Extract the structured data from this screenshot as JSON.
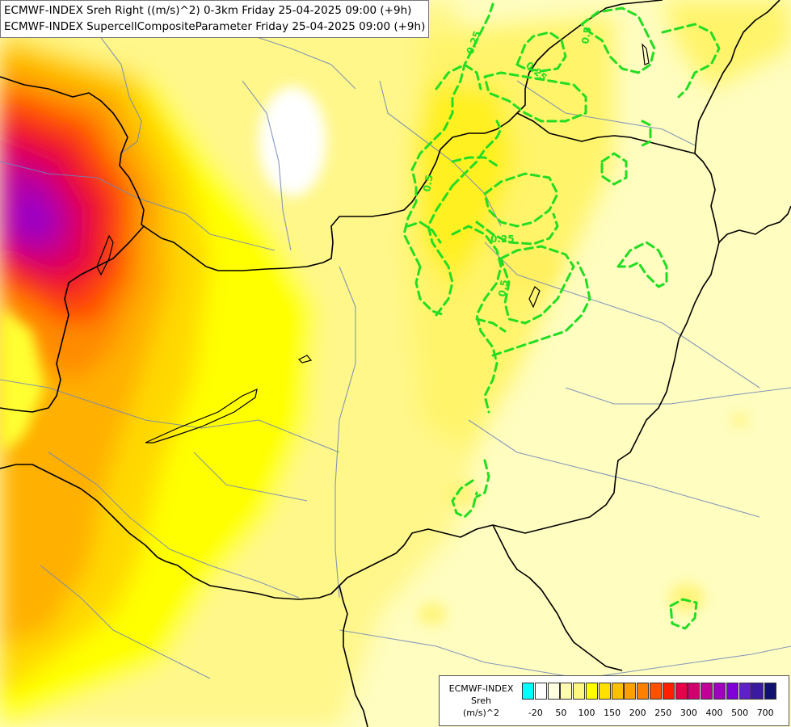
{
  "title": {
    "line1": "ECMWF-INDEX Sreh Right ((m/s)^2) 0-3km Friday 25-04-2025 09:00 (+9h)",
    "line2": "ECMWF-INDEX SupercellCompositeParameter Friday 25-04-2025 09:00 (+9h)"
  },
  "contour_labels": [
    "0.25",
    "0.25",
    "0.5",
    "0.5",
    "0.25",
    "0.5",
    "0.25"
  ],
  "legend": {
    "source": "ECMWF-INDEX",
    "variable": "Sreh",
    "unit": "(m/s)^2",
    "colors": [
      "#00ffff",
      "#ffffff",
      "#fffee0",
      "#fffcb0",
      "#fff880",
      "#ffff00",
      "#ffe000",
      "#ffc000",
      "#ffa000",
      "#ff8000",
      "#ff5000",
      "#ff2000",
      "#e8004a",
      "#d0006e",
      "#c00096",
      "#a000c0",
      "#8000d8",
      "#6020c8",
      "#3a1aa0",
      "#101070"
    ],
    "tick_labels": [
      "-20",
      "50",
      "100",
      "150",
      "200",
      "250",
      "300",
      "400",
      "500",
      "700"
    ]
  },
  "colors": {
    "contour": "#22dd22",
    "border": "#000000",
    "river": "#6f86b8"
  }
}
